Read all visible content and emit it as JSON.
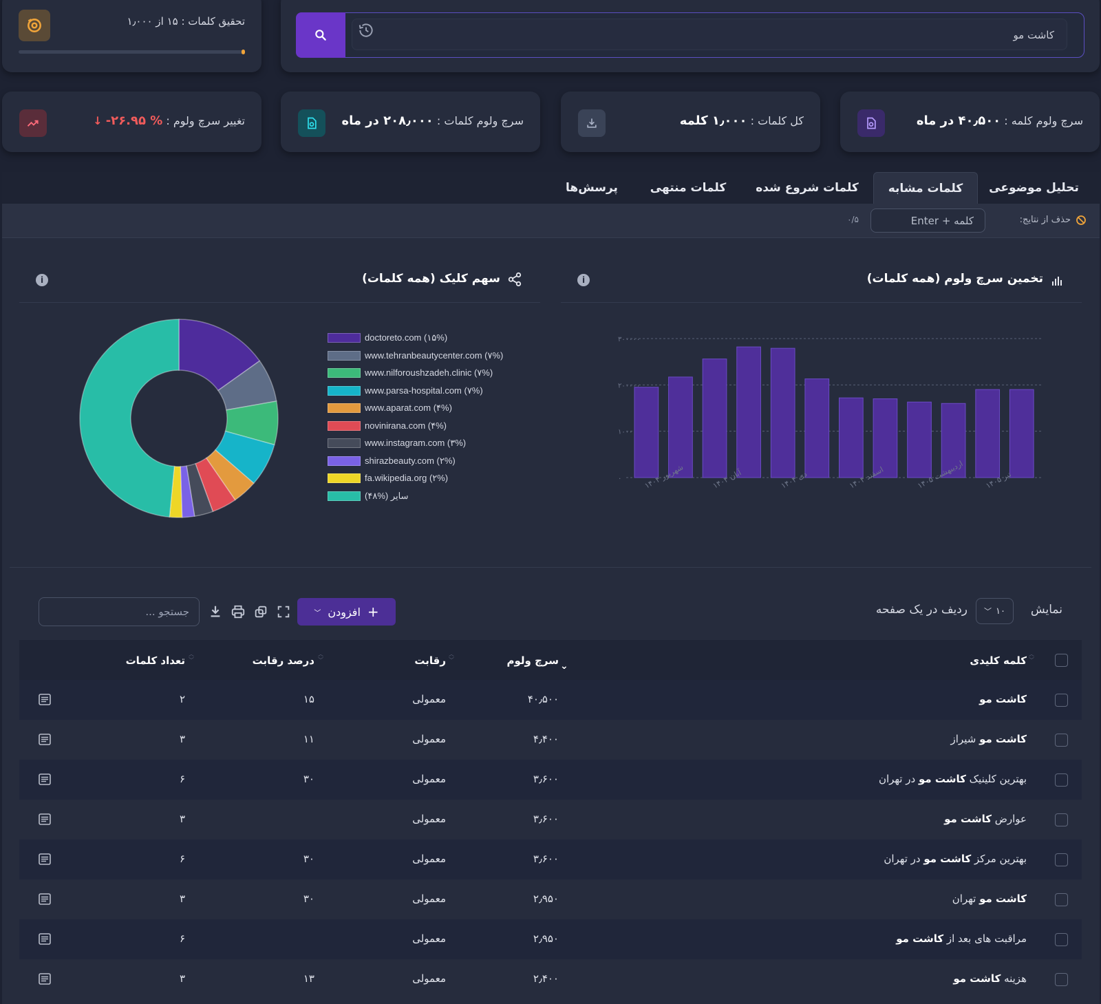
{
  "research": {
    "label": "تحقیق کلمات : ۱۵ از ۱٫۰۰۰",
    "progress": 0.015
  },
  "search": {
    "value": "کاشت مو"
  },
  "stats": {
    "keyword_volume_label": "سرچ ولوم کلمه :",
    "keyword_volume_value": "۴۰٫۵۰۰ در ماه",
    "total_words_label": "کل کلمات :",
    "total_words_value": "۱٫۰۰۰ کلمه",
    "words_volume_label": "سرچ ولوم کلمات :",
    "words_volume_value": "۲۰۸٫۰۰۰ در ماه",
    "change_label": "تغییر سرچ ولوم :",
    "change_value": "-۲۶.۹۵ %"
  },
  "tabs": [
    {
      "label": "تحلیل موضوعی"
    },
    {
      "label": "کلمات مشابه"
    },
    {
      "label": "کلمات شروع شده"
    },
    {
      "label": "کلمات منتهی"
    },
    {
      "label": "پرسش‌ها"
    }
  ],
  "filter": {
    "label": "حذف از نتایج:",
    "placeholder": "کلمه + Enter",
    "count": "۰/۵"
  },
  "bar_panel": {
    "title": "تخمین سرچ ولوم (همه کلمات)"
  },
  "pie_panel": {
    "title": "سهم کلیک (همه کلمات)"
  },
  "chart_data": [
    {
      "type": "bar",
      "title": "تخمین سرچ ولوم (همه کلمات)",
      "x_tick_labels": [
        "شهریور ۱۴۰۴",
        "آبان ۱۴۰۴",
        "دی ۱۴۰۴",
        "اسفند ۱۴۰۴",
        "اردیبهشت ۱۴۰۵",
        "تیر ۱۴۰۵"
      ],
      "y_tick_labels": [
        "۰",
        "۱۰۰۰۰۰",
        "۲۰۰۰۰۰",
        "۳۰۰۰۰۰"
      ],
      "values": [
        195000,
        217000,
        256000,
        282000,
        279000,
        213000,
        172000,
        170000,
        163000,
        160000,
        190000,
        190000
      ],
      "ylim": [
        0,
        300000
      ],
      "grid": true,
      "bar_color": "#4f2f9a"
    },
    {
      "type": "pie",
      "title": "سهم کلیک (همه کلمات)",
      "legend_position": "right",
      "slices": [
        {
          "label": "doctoreto.com (۱۵%)",
          "value": 15,
          "color": "#4e2c9c"
        },
        {
          "label": "www.tehranbeautycenter.com (۷%)",
          "value": 7,
          "color": "#5e6d87"
        },
        {
          "label": "www.nilforoushzadeh.clinic (۷%)",
          "value": 7,
          "color": "#3cba7a"
        },
        {
          "label": "www.parsa-hospital.com (۷%)",
          "value": 7,
          "color": "#16b4c9"
        },
        {
          "label": "www.aparat.com (۴%)",
          "value": 4,
          "color": "#e39a3e"
        },
        {
          "label": "novinirana.com (۴%)",
          "value": 4,
          "color": "#e04b55"
        },
        {
          "label": "www.instagram.com (۳%)",
          "value": 3,
          "color": "#454b5a"
        },
        {
          "label": "shirazbeauty.com (۲%)",
          "value": 2,
          "color": "#7a62e6"
        },
        {
          "label": "fa.wikipedia.org (۲%)",
          "value": 2,
          "color": "#eed627"
        },
        {
          "label": "سایر (%۴۸)",
          "value": 48,
          "color": "#28bda7"
        }
      ]
    }
  ],
  "table_controls": {
    "show_label": "نمایش",
    "page_size": "۱۰",
    "rows_label": "ردیف در یک صفحه",
    "add_label": "افزودن",
    "search_placeholder": "جستجو ..."
  },
  "table": {
    "headers": {
      "keyword": "کلمه کلیدی",
      "volume": "سرچ ولوم",
      "competition": "رقابت",
      "competition_percent": "درصد رقابت",
      "word_count": "تعداد کلمات"
    },
    "rows": [
      {
        "pre": "",
        "kw": "کاشت مو",
        "post": "",
        "volume": "۴۰٫۵۰۰",
        "competition": "معمولی",
        "percent": "۱۵",
        "words": "۲"
      },
      {
        "pre": "",
        "kw": "کاشت مو",
        "post": " شیراز",
        "volume": "۴٫۴۰۰",
        "competition": "معمولی",
        "percent": "۱۱",
        "words": "۳"
      },
      {
        "pre": "بهترین کلینیک ",
        "kw": "کاشت مو",
        "post": " در تهران",
        "volume": "۳٫۶۰۰",
        "competition": "معمولی",
        "percent": "۳۰",
        "words": "۶"
      },
      {
        "pre": "عوارض ",
        "kw": "کاشت مو",
        "post": "",
        "volume": "۳٫۶۰۰",
        "competition": "معمولی",
        "percent": "",
        "words": "۳"
      },
      {
        "pre": "بهترین مرکز ",
        "kw": "کاشت مو",
        "post": " در تهران",
        "volume": "۳٫۶۰۰",
        "competition": "معمولی",
        "percent": "۳۰",
        "words": "۶"
      },
      {
        "pre": "",
        "kw": "کاشت مو",
        "post": " تهران",
        "volume": "۲٫۹۵۰",
        "competition": "معمولی",
        "percent": "۳۰",
        "words": "۳"
      },
      {
        "pre": "مراقبت های بعد از ",
        "kw": "کاشت مو",
        "post": "",
        "volume": "۲٫۹۵۰",
        "competition": "معمولی",
        "percent": "",
        "words": "۶"
      },
      {
        "pre": "هزینه ",
        "kw": "کاشت مو",
        "post": "",
        "volume": "۲٫۴۰۰",
        "competition": "معمولی",
        "percent": "۱۳",
        "words": "۳"
      }
    ]
  }
}
